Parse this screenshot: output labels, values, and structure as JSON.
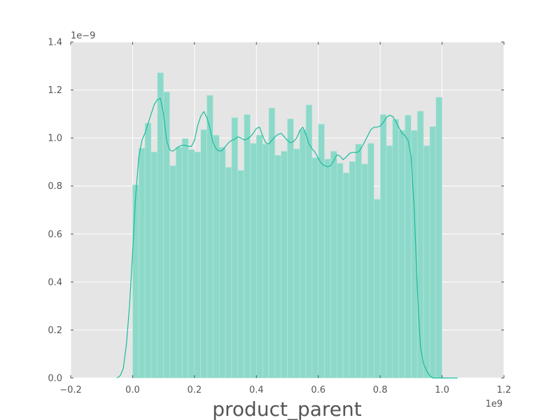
{
  "chart_data": {
    "type": "bar",
    "subtype": "histogram-with-kde",
    "xlabel": "product_parent",
    "ylabel": "",
    "title": "",
    "x_offset_label": "1e9",
    "y_offset_label": "1e−9",
    "xlim": [
      -0.2,
      1.2
    ],
    "ylim": [
      0.0,
      1.4
    ],
    "x_scale_exponent": 9,
    "y_scale_exponent": -9,
    "xticks": [
      -0.2,
      0.0,
      0.2,
      0.4,
      0.6,
      0.8,
      1.0,
      1.2
    ],
    "xtick_labels": [
      "−0.2",
      "0.0",
      "0.2",
      "0.4",
      "0.6",
      "0.8",
      "1.0",
      "1.2"
    ],
    "yticks": [
      0.0,
      0.2,
      0.4,
      0.6,
      0.8,
      1.0,
      1.2,
      1.4
    ],
    "ytick_labels": [
      "0.0",
      "0.2",
      "0.4",
      "0.6",
      "0.8",
      "1.0",
      "1.2",
      "1.4"
    ],
    "grid": true,
    "background_color": "#e5e5e5",
    "bar_color": "#8dd9c9",
    "kde_color": "#1abc9c",
    "bins": {
      "start": 0.0,
      "width": 0.02,
      "values": [
        0.805,
        0.958,
        1.062,
        0.942,
        1.272,
        1.192,
        0.885,
        0.962,
        0.998,
        0.952,
        0.942,
        1.035,
        1.178,
        1.012,
        0.962,
        0.878,
        1.085,
        0.865,
        1.098,
        0.978,
        1.012,
        0.975,
        1.125,
        0.928,
        0.945,
        1.08,
        0.955,
        1.035,
        1.138,
        0.918,
        1.058,
        0.912,
        0.945,
        0.895,
        0.855,
        0.902,
        0.975,
        0.892,
        0.978,
        0.745,
        1.098,
        0.968,
        1.078,
        1.032,
        1.095,
        1.032,
        1.112,
        0.968,
        1.048,
        1.17
      ]
    },
    "kde": {
      "x": [
        -0.05,
        -0.04,
        -0.03,
        -0.02,
        -0.01,
        0.0,
        0.01,
        0.02,
        0.03,
        0.04,
        0.05,
        0.06,
        0.07,
        0.08,
        0.09,
        0.1,
        0.11,
        0.12,
        0.13,
        0.14,
        0.15,
        0.16,
        0.17,
        0.18,
        0.19,
        0.2,
        0.21,
        0.22,
        0.23,
        0.24,
        0.25,
        0.26,
        0.27,
        0.28,
        0.29,
        0.3,
        0.31,
        0.32,
        0.33,
        0.34,
        0.35,
        0.36,
        0.37,
        0.38,
        0.39,
        0.4,
        0.41,
        0.42,
        0.43,
        0.44,
        0.45,
        0.46,
        0.47,
        0.48,
        0.49,
        0.5,
        0.51,
        0.52,
        0.53,
        0.54,
        0.55,
        0.56,
        0.57,
        0.58,
        0.59,
        0.6,
        0.61,
        0.62,
        0.63,
        0.64,
        0.65,
        0.66,
        0.67,
        0.68,
        0.69,
        0.7,
        0.71,
        0.72,
        0.73,
        0.74,
        0.75,
        0.76,
        0.77,
        0.78,
        0.79,
        0.8,
        0.81,
        0.82,
        0.83,
        0.84,
        0.85,
        0.86,
        0.87,
        0.88,
        0.89,
        0.9,
        0.91,
        0.92,
        0.93,
        0.94,
        0.95,
        0.96,
        0.97,
        0.98,
        0.99,
        1.0,
        1.01,
        1.02,
        1.03,
        1.04,
        1.05
      ],
      "y": [
        0.0,
        0.01,
        0.04,
        0.14,
        0.3,
        0.52,
        0.76,
        0.92,
        0.99,
        1.02,
        1.06,
        1.1,
        1.14,
        1.16,
        1.165,
        1.1,
        0.99,
        0.95,
        0.945,
        0.955,
        0.965,
        0.97,
        0.97,
        0.965,
        0.965,
        0.99,
        1.05,
        1.09,
        1.11,
        1.085,
        1.04,
        0.98,
        0.955,
        0.945,
        0.948,
        0.965,
        0.98,
        0.99,
        0.995,
        1.005,
        1.0,
        0.992,
        0.995,
        1.005,
        1.02,
        1.04,
        1.045,
        1.01,
        0.98,
        0.975,
        0.99,
        1.005,
        1.015,
        1.02,
        1.005,
        0.99,
        0.98,
        0.985,
        1.0,
        1.03,
        1.045,
        1.015,
        0.975,
        0.955,
        0.94,
        0.915,
        0.895,
        0.885,
        0.88,
        0.885,
        0.905,
        0.93,
        0.925,
        0.91,
        0.92,
        0.935,
        0.94,
        0.94,
        0.942,
        0.96,
        0.985,
        1.01,
        1.035,
        1.045,
        1.045,
        1.05,
        1.065,
        1.085,
        1.095,
        1.09,
        1.07,
        1.045,
        1.02,
        1.01,
        0.99,
        0.92,
        0.7,
        0.37,
        0.13,
        0.06,
        0.03,
        0.01,
        0.0,
        0.0,
        0.0,
        0.0,
        0.0,
        0.0,
        0.0,
        0.0,
        0.0
      ]
    }
  }
}
